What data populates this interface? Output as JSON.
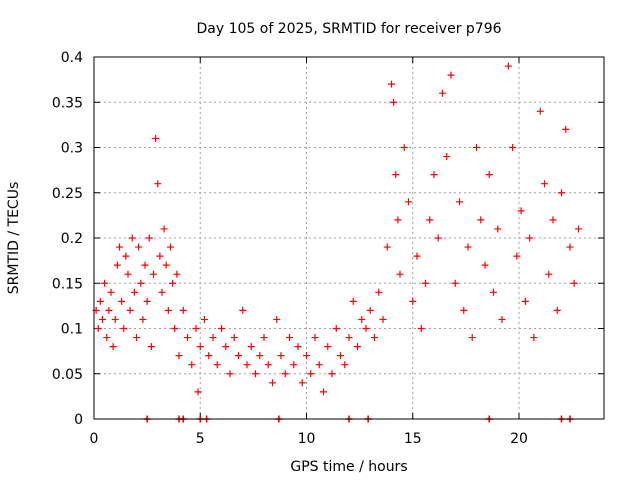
{
  "chart_data": {
    "type": "scatter",
    "title": "Day 105 of 2025, SRMTID for receiver p796",
    "xlabel": "GPS time / hours",
    "ylabel": "SRMTID / TECUs",
    "xlim": [
      0,
      24
    ],
    "ylim": [
      0,
      0.4
    ],
    "xticks": [
      0,
      5,
      10,
      15,
      20
    ],
    "yticks": [
      0,
      0.05,
      0.1,
      0.15,
      0.2,
      0.25,
      0.3,
      0.35,
      0.4
    ],
    "xtick_labels": [
      "0",
      "5",
      "10",
      "15",
      "20"
    ],
    "ytick_labels": [
      "0",
      "0.05",
      "0.1",
      "0.15",
      "0.2",
      "0.25",
      "0.3",
      "0.35",
      "0.4"
    ],
    "grid": true,
    "marker": "+",
    "color": "#ff0000",
    "series": [
      {
        "name": "SRMTID",
        "points": [
          [
            0.1,
            0.12
          ],
          [
            0.2,
            0.1
          ],
          [
            0.3,
            0.13
          ],
          [
            0.4,
            0.11
          ],
          [
            0.5,
            0.15
          ],
          [
            0.6,
            0.09
          ],
          [
            0.7,
            0.12
          ],
          [
            0.8,
            0.14
          ],
          [
            0.9,
            0.08
          ],
          [
            1.0,
            0.11
          ],
          [
            1.1,
            0.17
          ],
          [
            1.2,
            0.19
          ],
          [
            1.3,
            0.13
          ],
          [
            1.4,
            0.1
          ],
          [
            1.5,
            0.18
          ],
          [
            1.6,
            0.16
          ],
          [
            1.7,
            0.12
          ],
          [
            1.8,
            0.2
          ],
          [
            1.9,
            0.14
          ],
          [
            2.0,
            0.09
          ],
          [
            2.1,
            0.19
          ],
          [
            2.2,
            0.15
          ],
          [
            2.3,
            0.11
          ],
          [
            2.4,
            0.17
          ],
          [
            2.5,
            0.13
          ],
          [
            2.6,
            0.2
          ],
          [
            2.7,
            0.08
          ],
          [
            2.8,
            0.16
          ],
          [
            2.9,
            0.31
          ],
          [
            3.0,
            0.26
          ],
          [
            3.1,
            0.18
          ],
          [
            3.2,
            0.14
          ],
          [
            3.3,
            0.21
          ],
          [
            3.4,
            0.17
          ],
          [
            3.5,
            0.12
          ],
          [
            3.6,
            0.19
          ],
          [
            3.7,
            0.15
          ],
          [
            3.8,
            0.1
          ],
          [
            3.9,
            0.16
          ],
          [
            4.0,
            0.07
          ],
          [
            4.2,
            0.12
          ],
          [
            4.4,
            0.09
          ],
          [
            4.6,
            0.06
          ],
          [
            4.8,
            0.1
          ],
          [
            4.9,
            0.03
          ],
          [
            5.0,
            0.08
          ],
          [
            5.2,
            0.11
          ],
          [
            5.4,
            0.07
          ],
          [
            5.6,
            0.09
          ],
          [
            5.8,
            0.06
          ],
          [
            6.0,
            0.1
          ],
          [
            6.2,
            0.08
          ],
          [
            6.4,
            0.05
          ],
          [
            6.6,
            0.09
          ],
          [
            6.8,
            0.07
          ],
          [
            7.0,
            0.12
          ],
          [
            7.2,
            0.06
          ],
          [
            7.4,
            0.08
          ],
          [
            7.6,
            0.05
          ],
          [
            7.8,
            0.07
          ],
          [
            8.0,
            0.09
          ],
          [
            8.2,
            0.06
          ],
          [
            8.4,
            0.04
          ],
          [
            8.6,
            0.11
          ],
          [
            8.8,
            0.07
          ],
          [
            9.0,
            0.05
          ],
          [
            9.2,
            0.09
          ],
          [
            9.4,
            0.06
          ],
          [
            9.6,
            0.08
          ],
          [
            9.8,
            0.04
          ],
          [
            10.0,
            0.07
          ],
          [
            10.2,
            0.05
          ],
          [
            10.4,
            0.09
          ],
          [
            10.6,
            0.06
          ],
          [
            10.8,
            0.03
          ],
          [
            11.0,
            0.08
          ],
          [
            11.2,
            0.05
          ],
          [
            11.4,
            0.1
          ],
          [
            11.6,
            0.07
          ],
          [
            11.8,
            0.06
          ],
          [
            12.0,
            0.09
          ],
          [
            12.2,
            0.13
          ],
          [
            12.4,
            0.08
          ],
          [
            12.6,
            0.11
          ],
          [
            12.8,
            0.1
          ],
          [
            13.0,
            0.12
          ],
          [
            13.2,
            0.09
          ],
          [
            13.4,
            0.14
          ],
          [
            13.6,
            0.11
          ],
          [
            13.8,
            0.19
          ],
          [
            14.0,
            0.37
          ],
          [
            14.1,
            0.35
          ],
          [
            14.2,
            0.27
          ],
          [
            14.3,
            0.22
          ],
          [
            14.4,
            0.16
          ],
          [
            14.6,
            0.3
          ],
          [
            14.8,
            0.24
          ],
          [
            15.0,
            0.13
          ],
          [
            15.2,
            0.18
          ],
          [
            15.4,
            0.1
          ],
          [
            15.6,
            0.15
          ],
          [
            15.8,
            0.22
          ],
          [
            16.0,
            0.27
          ],
          [
            16.2,
            0.2
          ],
          [
            16.4,
            0.36
          ],
          [
            16.6,
            0.29
          ],
          [
            16.8,
            0.38
          ],
          [
            17.0,
            0.15
          ],
          [
            17.2,
            0.24
          ],
          [
            17.4,
            0.12
          ],
          [
            17.6,
            0.19
          ],
          [
            17.8,
            0.09
          ],
          [
            18.0,
            0.3
          ],
          [
            18.2,
            0.22
          ],
          [
            18.4,
            0.17
          ],
          [
            18.6,
            0.27
          ],
          [
            18.8,
            0.14
          ],
          [
            19.0,
            0.21
          ],
          [
            19.2,
            0.11
          ],
          [
            19.5,
            0.39
          ],
          [
            19.7,
            0.3
          ],
          [
            19.9,
            0.18
          ],
          [
            20.1,
            0.23
          ],
          [
            20.3,
            0.13
          ],
          [
            20.5,
            0.2
          ],
          [
            20.7,
            0.09
          ],
          [
            21.0,
            0.34
          ],
          [
            21.2,
            0.26
          ],
          [
            21.4,
            0.16
          ],
          [
            21.6,
            0.22
          ],
          [
            21.8,
            0.12
          ],
          [
            22.0,
            0.25
          ],
          [
            22.2,
            0.32
          ],
          [
            22.4,
            0.19
          ],
          [
            22.6,
            0.15
          ],
          [
            22.8,
            0.21
          ]
        ]
      }
    ],
    "zero_level_marks": [
      2.5,
      4.0,
      4.2,
      5.0,
      5.3,
      8.7,
      12.0,
      12.9,
      18.6,
      22.0,
      22.4
    ]
  }
}
